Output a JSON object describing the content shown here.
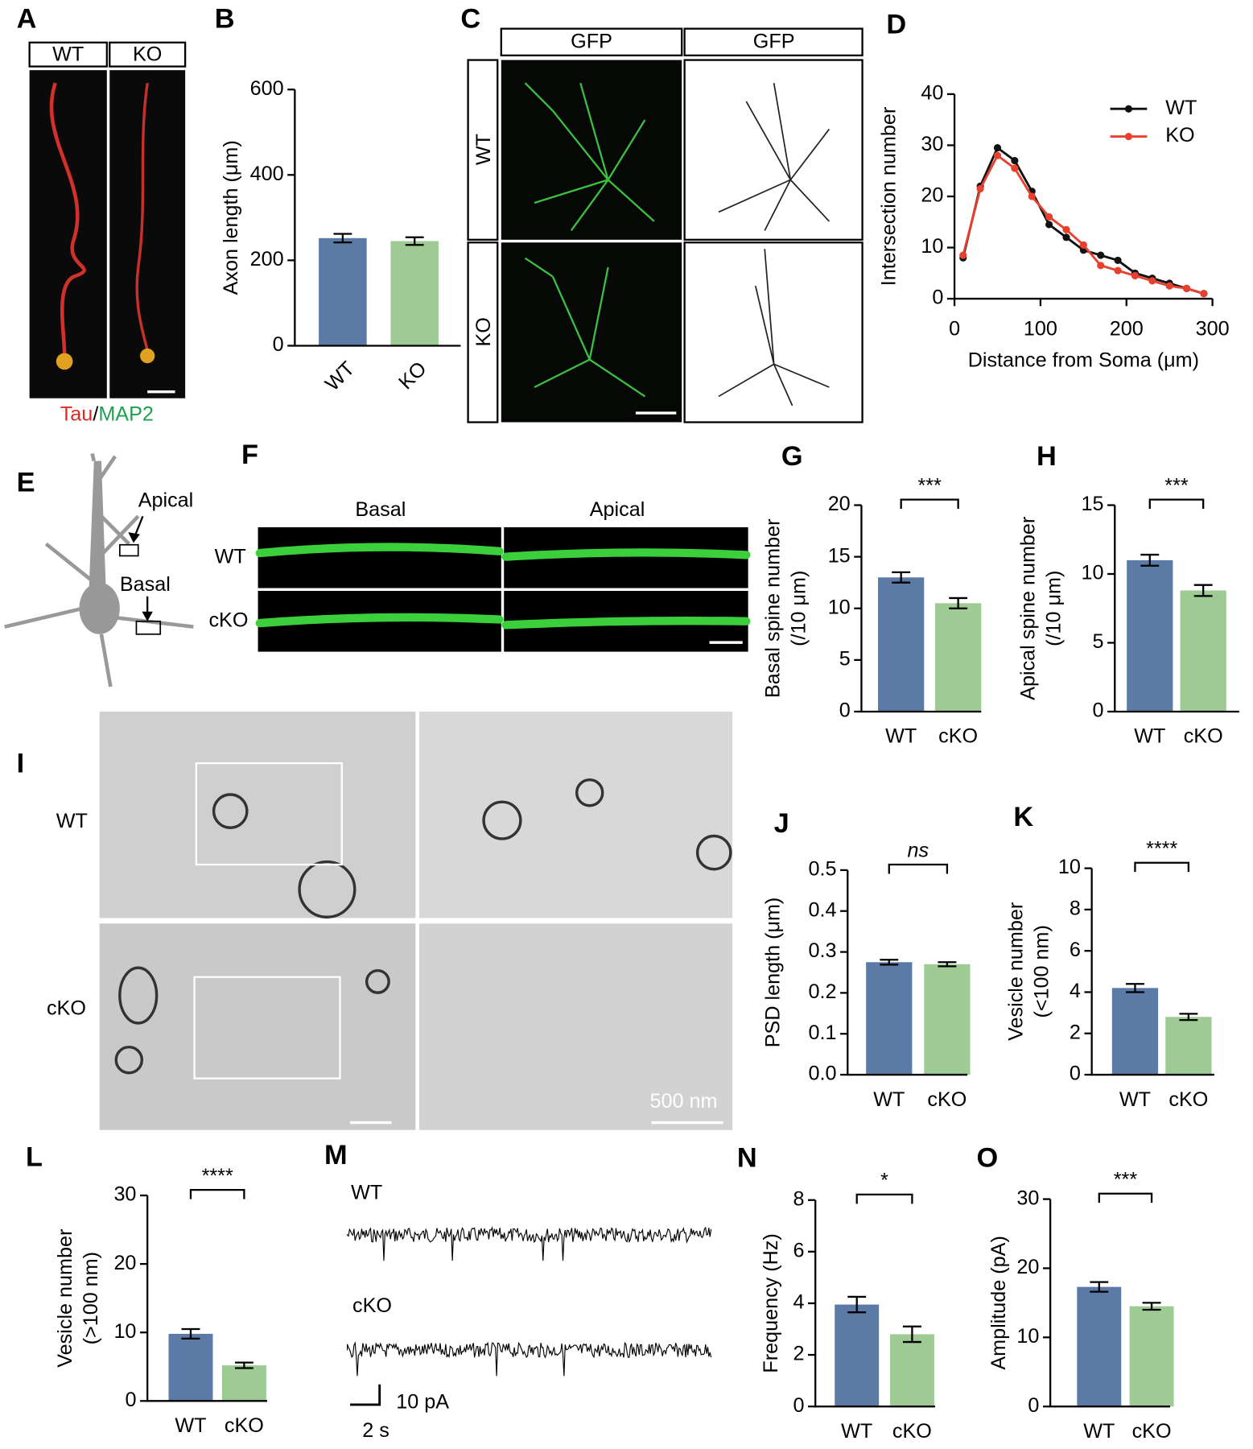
{
  "panel_letters": [
    "A",
    "B",
    "C",
    "D",
    "E",
    "F",
    "G",
    "H",
    "I",
    "J",
    "K",
    "L",
    "M",
    "N",
    "O"
  ],
  "figure_text": {
    "a_headers": [
      "WT",
      "KO"
    ],
    "a_stain": [
      "Tau",
      "/",
      "MAP2"
    ],
    "c_headers": [
      "GFP",
      "GFP"
    ],
    "c_rows": [
      "WT",
      "KO"
    ],
    "e_labels": [
      "Apical",
      "Basal"
    ],
    "f_columns": [
      "Basal",
      "Apical"
    ],
    "f_rows": [
      "WT",
      "cKO"
    ],
    "i_rows": [
      "WT",
      "cKO"
    ],
    "i_scale": "500 nm",
    "m_rows": [
      "WT",
      "cKO"
    ],
    "m_scale": [
      "10 pA",
      "2 s"
    ]
  },
  "chart_data": [
    {
      "type": "bar",
      "y_label": [
        "Axon length (μm)"
      ],
      "categories": [
        "WT",
        "KO"
      ],
      "values": [
        252,
        245
      ],
      "errors": [
        10,
        9
      ],
      "colors": [
        "#5b7ba6",
        "#9dcb93"
      ],
      "ylim": [
        0,
        600
      ],
      "yticks": [
        0,
        200,
        400,
        600
      ]
    },
    {
      "type": "line",
      "y_label": [
        "Intersection number"
      ],
      "x_label": "Distance from Soma (μm)",
      "x": [
        10,
        30,
        50,
        70,
        90,
        110,
        130,
        150,
        170,
        190,
        210,
        230,
        250,
        270,
        290
      ],
      "series": [
        {
          "name": "WT",
          "color": "#111111",
          "values": [
            8,
            22,
            29.5,
            27,
            21,
            14.5,
            12,
            9.5,
            8.5,
            7.5,
            5,
            4,
            3,
            2,
            1
          ]
        },
        {
          "name": "KO",
          "color": "#e8402f",
          "values": [
            8.5,
            21.5,
            28,
            25.5,
            20,
            16,
            13.5,
            10.5,
            6.5,
            5.5,
            4.5,
            3.5,
            2.5,
            2,
            1
          ]
        }
      ],
      "xlim": [
        0,
        300
      ],
      "xticks": [
        0,
        100,
        200,
        300
      ],
      "ylim": [
        0,
        40
      ],
      "yticks": [
        0,
        10,
        20,
        30,
        40
      ]
    },
    {
      "type": "bar",
      "y_label": [
        "Basal spine number",
        "(/10 μm)"
      ],
      "categories": [
        "WT",
        "cKO"
      ],
      "values": [
        13,
        10.5
      ],
      "errors": [
        0.5,
        0.5
      ],
      "colors": [
        "#5b7ba6",
        "#9dcb93"
      ],
      "ylim": [
        0,
        20
      ],
      "yticks": [
        0,
        5,
        10,
        15,
        20
      ],
      "significance": "***"
    },
    {
      "type": "bar",
      "y_label": [
        "Apical spine number",
        "(/10 μm)"
      ],
      "categories": [
        "WT",
        "cKO"
      ],
      "values": [
        11,
        8.8
      ],
      "errors": [
        0.4,
        0.4
      ],
      "colors": [
        "#5b7ba6",
        "#9dcb93"
      ],
      "ylim": [
        0,
        15
      ],
      "yticks": [
        0,
        5,
        10,
        15
      ],
      "significance": "***"
    },
    {
      "type": "bar",
      "y_label": [
        "PSD length (μm)"
      ],
      "categories": [
        "WT",
        "cKO"
      ],
      "values": [
        0.275,
        0.27
      ],
      "errors": [
        0.006,
        0.005
      ],
      "colors": [
        "#5b7ba6",
        "#9dcb93"
      ],
      "ylim": [
        0,
        0.5
      ],
      "yticks": [
        {
          "value": 0,
          "label": "0.0"
        },
        0.1,
        0.2,
        0.3,
        0.4,
        0.5
      ],
      "significance": "ns"
    },
    {
      "type": "bar",
      "y_label": [
        "Vesicle number",
        "(<100 nm)"
      ],
      "categories": [
        "WT",
        "cKO"
      ],
      "values": [
        4.2,
        2.8
      ],
      "errors": [
        0.2,
        0.15
      ],
      "colors": [
        "#5b7ba6",
        "#9dcb93"
      ],
      "ylim": [
        0,
        10
      ],
      "yticks": [
        0,
        2,
        4,
        6,
        8,
        10
      ],
      "significance": "****"
    },
    {
      "type": "bar",
      "y_label": [
        "Vesicle number",
        "(>100 nm)"
      ],
      "categories": [
        "WT",
        "cKO"
      ],
      "values": [
        9.8,
        5.2
      ],
      "errors": [
        0.7,
        0.4
      ],
      "colors": [
        "#5b7ba6",
        "#9dcb93"
      ],
      "ylim": [
        0,
        30
      ],
      "yticks": [
        0,
        10,
        20,
        30
      ],
      "significance": "****"
    },
    {
      "type": "bar",
      "y_label": [
        "Frequency (Hz)"
      ],
      "categories": [
        "WT",
        "cKO"
      ],
      "values": [
        3.95,
        2.8
      ],
      "errors": [
        0.3,
        0.3
      ],
      "colors": [
        "#5b7ba6",
        "#9dcb93"
      ],
      "ylim": [
        0,
        8
      ],
      "yticks": [
        0,
        2,
        4,
        6,
        8
      ],
      "significance": "*"
    },
    {
      "type": "bar",
      "y_label": [
        "Amplitude (pA)"
      ],
      "categories": [
        "WT",
        "cKO"
      ],
      "values": [
        17.3,
        14.5
      ],
      "errors": [
        0.7,
        0.5
      ],
      "colors": [
        "#5b7ba6",
        "#9dcb93"
      ],
      "ylim": [
        0,
        30
      ],
      "yticks": [
        0,
        10,
        20,
        30
      ],
      "significance": "***"
    }
  ]
}
